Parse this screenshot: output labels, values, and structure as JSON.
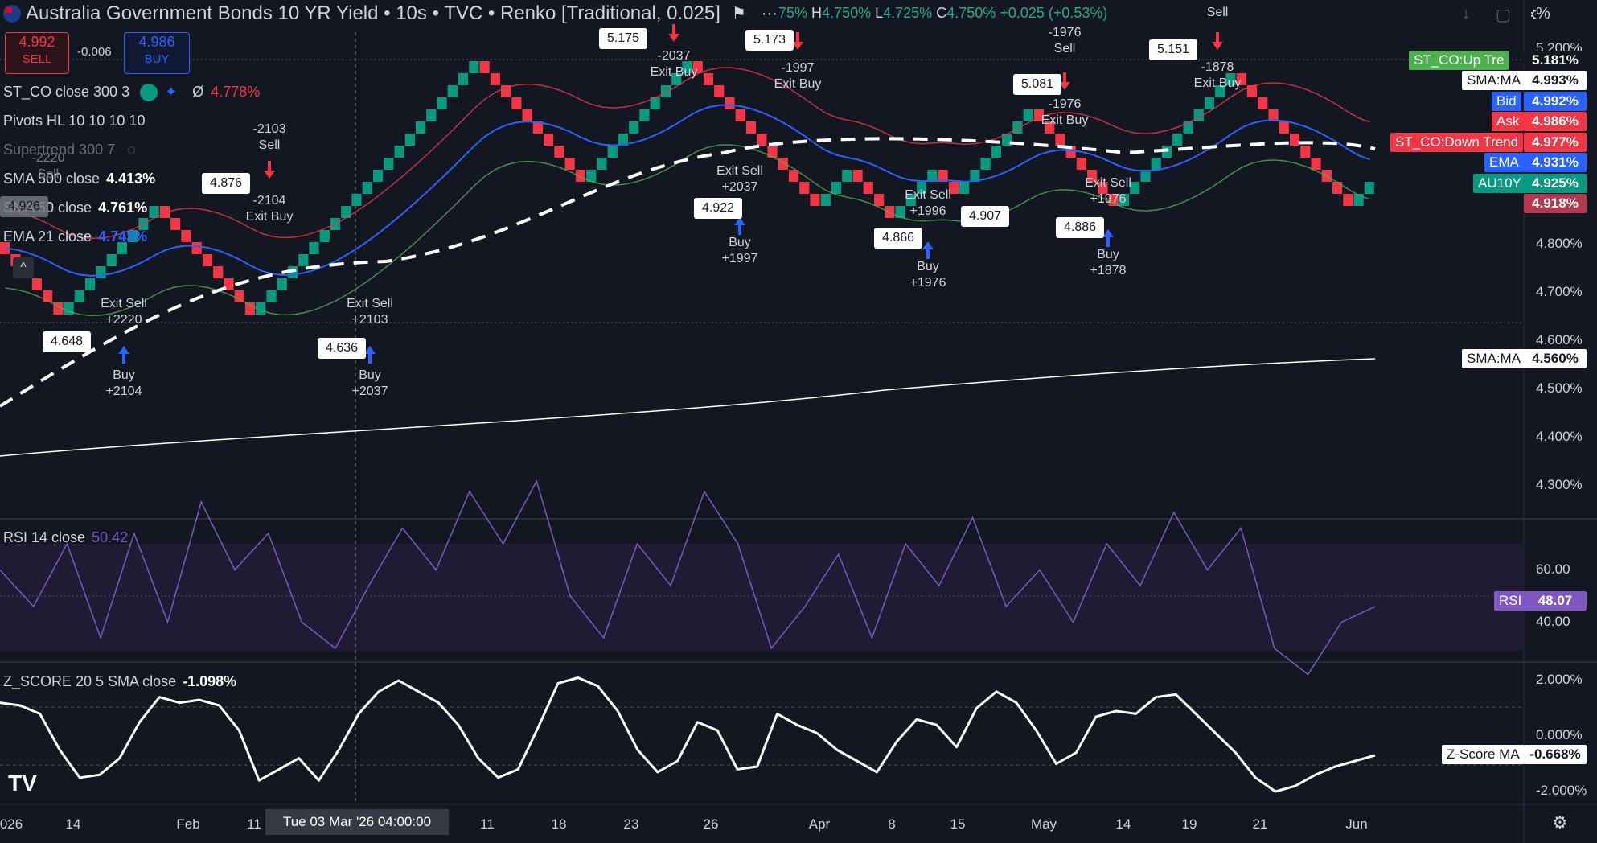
{
  "header": {
    "title": "Australia Government Bonds 10 YR Yield • 10s • TVC • Renko [Traditional, 0.025]",
    "ohlc": {
      "h_key": "H",
      "h": "4.750%",
      "l_key": "L",
      "l": "4.725%",
      "c_key": "C",
      "c": "4.750%",
      "change": "+0.025 (+0.53%)"
    },
    "partial_left": "75%",
    "percent_label": "%"
  },
  "trade": {
    "sell_price": "4.992",
    "sell_label": "SELL",
    "spread": "-0.006",
    "buy_price": "4.986",
    "buy_label": "BUY"
  },
  "legend": {
    "st_co": "ST_CO close 300 3",
    "st_co_value": "4.778%",
    "st_co_sym": "Ø",
    "pivots": "Pivots HL 10 10 10 10",
    "supertrend": "Supertrend 300 7",
    "sma500": "SMA 500 close",
    "sma500_value": "4.413%",
    "sma50": "SMA 50 close",
    "sma50_value": "4.761%",
    "ema21": "EMA 21 close",
    "ema21_value": "4.743%",
    "rsi": "RSI 14 close",
    "rsi_value": "50.42",
    "zscore": "Z_SCORE 20 5 SMA close",
    "zscore_value": "-1.098%"
  },
  "price_labels": [
    {
      "name": "ST_CO:Up Trend",
      "label": "ST_CO:Up Tre",
      "value": "5.181%",
      "color": "#4caf50"
    },
    {
      "name": "SMA:MA",
      "label": "SMA:MA",
      "value": "4.993%",
      "color": "#ffffff"
    },
    {
      "name": "Bid",
      "label": "Bid",
      "value": "4.992%",
      "color": "#2962ff"
    },
    {
      "name": "Ask",
      "label": "Ask",
      "value": "4.986%",
      "color": "#f23645"
    },
    {
      "name": "ST_CO:Down Trend",
      "label": "ST_CO:Down Trend",
      "value": "4.977%",
      "color": "#f23645"
    },
    {
      "name": "EMA",
      "label": "EMA",
      "value": "4.931%",
      "color": "#2962ff"
    },
    {
      "name": "AU10Y",
      "label": "AU10Y",
      "value": "4.925%",
      "color": "#089981"
    },
    {
      "name": "last",
      "label": "",
      "value": "4.918%",
      "color": "#b2394f"
    },
    {
      "name": "SMA:MA 500",
      "label": "SMA:MA",
      "value": "4.560%",
      "color": "#ffffff"
    }
  ],
  "rsi_label": {
    "label": "RSI",
    "value": "48.07"
  },
  "z_label": {
    "label": "Z-Score MA",
    "value": "-0.668%"
  },
  "crosshair_date": "Tue 03 Mar '26  04:00:00",
  "x_ticks": [
    "026",
    "14",
    "Feb",
    "11",
    "11",
    "18",
    "23",
    "26",
    "Apr",
    "8",
    "15",
    "May",
    "14",
    "19",
    "21",
    "Jun"
  ],
  "annotations": {
    "a1": "Exit Sell",
    "a1v": "+2220",
    "a2": "Buy",
    "a2v": "+2104",
    "a3": "Exit Sell",
    "a3v": "+2103",
    "a4": "Buy",
    "a4v": "+2037",
    "a5": "-2104",
    "a5b": "Exit Buy",
    "a6": "-2103",
    "a6b": "Sell",
    "a7": "-2037",
    "a7b": "Exit Buy",
    "a8": "Exit Sell",
    "a8v": "+2037",
    "a9": "Buy",
    "a9v": "+1997",
    "a10": "-1997",
    "a10b": "Exit Buy",
    "a11": "Exit Sell",
    "a11v": "+1996",
    "a12": "Buy",
    "a12v": "+1976",
    "a13": "-1976",
    "a13b": "Sell",
    "a14": "-1976",
    "a14b": "Exit Buy",
    "a15": "Exit Sell",
    "a15v": "+1976",
    "a16": "Buy",
    "a16v": "+1878",
    "a17": "-1878",
    "a17b": "Exit Buy",
    "a18": "Sell",
    "a19": "-2220",
    "a19b": "Sell"
  },
  "pivots": [
    "4.876",
    "4.648",
    "4.636",
    "5.175",
    "4.922",
    "5.173",
    "4.866",
    "4.907",
    "5.081",
    "4.886",
    "5.151",
    "4.926"
  ],
  "chart_data": [
    {
      "type": "renko",
      "title": "Australia Government Bonds 10 YR Yield • 10s • TVC • Renko [Traditional, 0.025]",
      "ylabel": "%",
      "yticks": [
        "4.300%",
        "4.400%",
        "4.500%",
        "4.600%",
        "4.700%",
        "4.800%",
        "5.200%"
      ],
      "ylim": [
        4.25,
        5.25
      ],
      "brick_size": 0.025,
      "path_waypoints": [
        4.8,
        4.65,
        4.875,
        4.75,
        4.64,
        4.9,
        5.175,
        4.92,
        5.175,
        4.875,
        4.95,
        4.86,
        4.95,
        4.9,
        5.08,
        4.88,
        5.15,
        4.93,
        4.88,
        4.925
      ],
      "last": 4.925,
      "sma500_last": 4.56,
      "ema21_last": 4.931,
      "series": [
        {
          "name": "SMA 500",
          "start": 4.36,
          "end": 4.56
        },
        {
          "name": "SMA 50",
          "last": 4.993
        }
      ]
    },
    {
      "type": "line",
      "title": "RSI 14 close",
      "yticks": [
        "40.00",
        "60.00"
      ],
      "ylim": [
        30,
        75
      ],
      "values": [
        55,
        48,
        60,
        42,
        62,
        45,
        68,
        55,
        62,
        45,
        40,
        52,
        63,
        55,
        70,
        60,
        72,
        50,
        42,
        60,
        52,
        70,
        60,
        40,
        48,
        58,
        42,
        60,
        52,
        65,
        48,
        55,
        45,
        60,
        52,
        66,
        55,
        63,
        40,
        35,
        45,
        48
      ]
    },
    {
      "type": "line",
      "title": "Z_SCORE 20 5 SMA close",
      "yticks": [
        "2.000%",
        "0.000%",
        "-2.000%"
      ],
      "ylim": [
        -2.8,
        2.8
      ],
      "values": [
        1.2,
        1.1,
        0.8,
        -0.5,
        -1.5,
        -1.4,
        -0.8,
        0.5,
        1.4,
        1.2,
        1.3,
        1.1,
        0.2,
        -1.6,
        -1.2,
        -0.8,
        -1.6,
        -0.5,
        0.8,
        1.6,
        2.0,
        1.6,
        1.2,
        0.4,
        -0.8,
        -1.5,
        -1.2,
        0.3,
        1.9,
        2.1,
        1.8,
        0.9,
        -0.5,
        -1.3,
        -0.9,
        0.5,
        0.2,
        -1.2,
        -1.1,
        0.8,
        0.4,
        0.1,
        -0.5,
        -0.9,
        -1.3,
        -0.2,
        0.6,
        0.4,
        -0.4,
        1.0,
        1.6,
        1.2,
        0.2,
        -1.0,
        -0.6,
        0.7,
        0.9,
        0.8,
        1.4,
        1.5,
        0.8,
        0.1,
        -0.6,
        -1.5,
        -2.0,
        -1.8,
        -1.4,
        -1.1,
        -0.9,
        -0.7
      ]
    }
  ]
}
